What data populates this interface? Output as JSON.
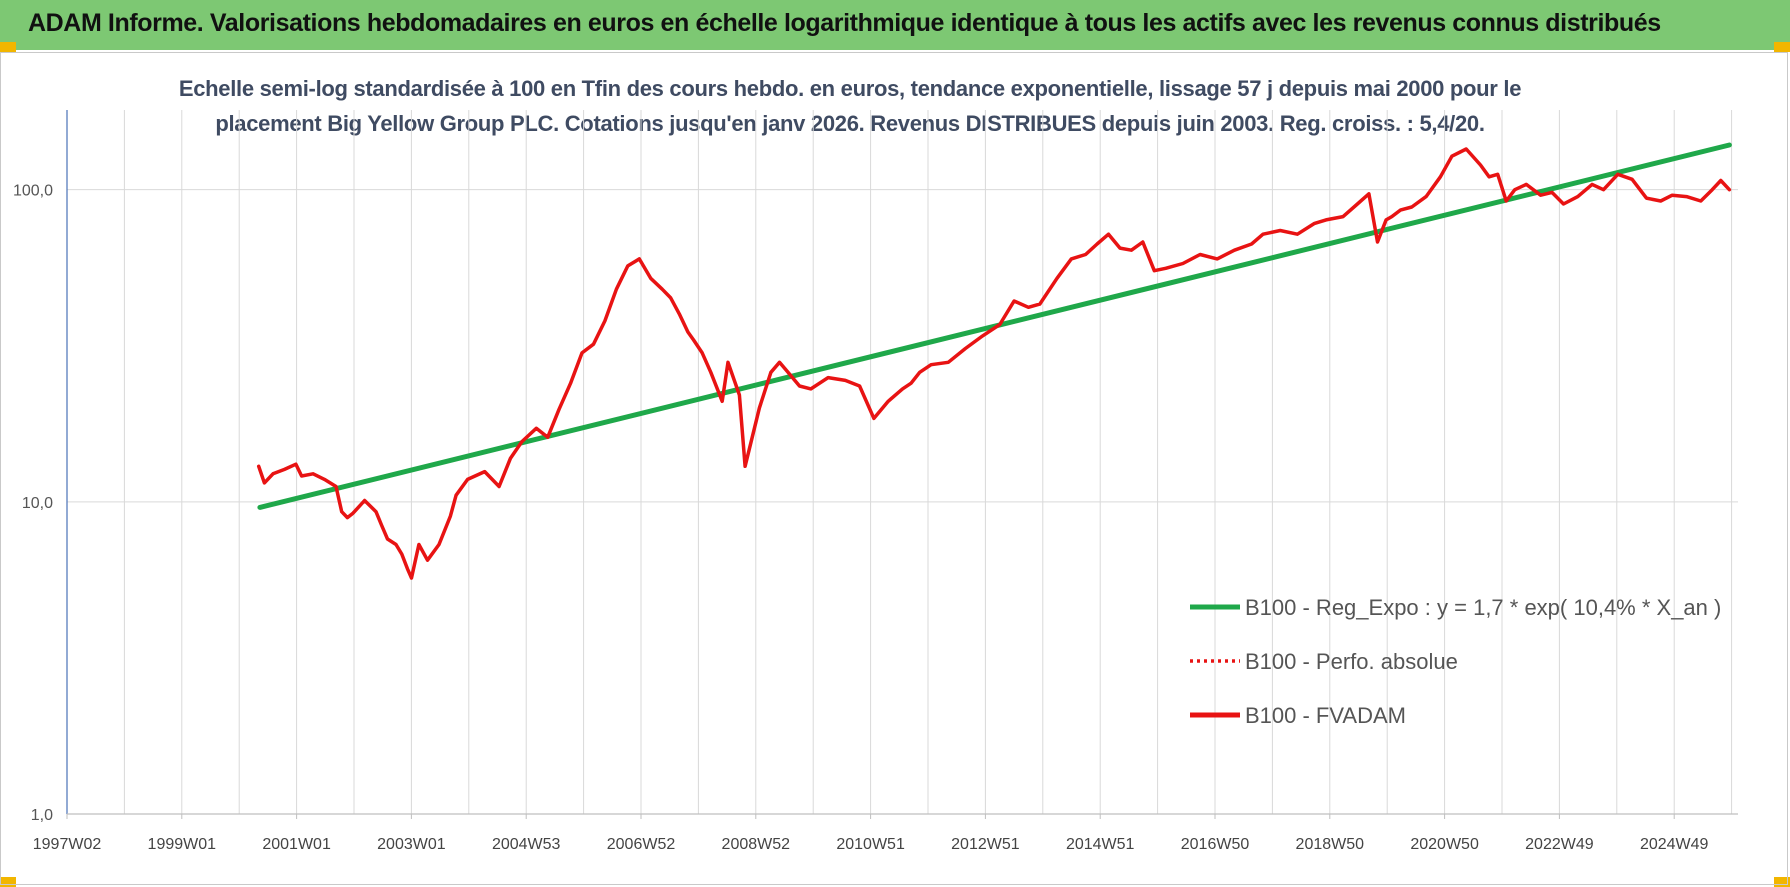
{
  "banner": {
    "title": "ADAM Informe. Valorisations hebdomadaires en euros en échelle logarithmique identique à tous les actifs avec les revenus connus distribués"
  },
  "colors": {
    "banner_bg": "#7dc873",
    "corner_accent": "#f2b600",
    "trend_line": "#1fa84a",
    "fvadam_line": "#e81313",
    "perfo_line": "#e81313",
    "subtitle_text": "#3f4b62"
  },
  "chart_data": {
    "type": "line",
    "title_line1": "Echelle semi-log standardisée à 100 en Tfin des cours hebdo. en euros, tendance exponentielle, lissage 57 j depuis mai 2000 pour le",
    "title_line2": "placement Big Yellow Group PLC. Cotations jusqu'en janv 2026. Revenus DISTRIBUES depuis juin 2003. Reg. croiss. : 5,4/20.",
    "y_scale": "log",
    "ylim": [
      1,
      180
    ],
    "y_ticks": [
      "1,0",
      "10,0",
      "100,0"
    ],
    "x_tick_labels": [
      "1997W02",
      "1999W01",
      "2001W01",
      "2003W01",
      "2004W53",
      "2006W52",
      "2008W52",
      "2010W51",
      "2012W51",
      "2014W51",
      "2016W50",
      "2018W50",
      "2020W50",
      "2022W49",
      "2024W49"
    ],
    "legend_position": "right",
    "grid": {
      "vertical": true,
      "horizontal": true
    },
    "series": [
      {
        "name": "B100 - Reg_Expo : y = 1,7 * exp( 10,4% *  X_an )",
        "style": "solid-green",
        "x": [
          2000.37,
          2026.05
        ],
        "y": [
          9.6,
          139
        ]
      },
      {
        "name": "B100 - Perfo. absolue",
        "style": "dotted-red",
        "x": [],
        "y": []
      },
      {
        "name": "B100 - FVADAM",
        "style": "solid-red",
        "x": [
          2000.35,
          2000.45,
          2000.6,
          2000.8,
          2001.0,
          2001.1,
          2001.3,
          2001.5,
          2001.7,
          2001.8,
          2001.9,
          2002.0,
          2002.2,
          2002.4,
          2002.5,
          2002.6,
          2002.75,
          2002.85,
          2002.95,
          2003.02,
          2003.15,
          2003.3,
          2003.5,
          2003.7,
          2003.8,
          2004.0,
          2004.3,
          2004.55,
          2004.75,
          2004.95,
          2005.2,
          2005.4,
          2005.6,
          2005.8,
          2006.0,
          2006.2,
          2006.4,
          2006.6,
          2006.8,
          2007.0,
          2007.2,
          2007.4,
          2007.55,
          2007.7,
          2007.85,
          2007.95,
          2008.1,
          2008.25,
          2008.45,
          2008.55,
          2008.75,
          2008.85,
          2009.1,
          2009.3,
          2009.45,
          2009.6,
          2009.8,
          2010.0,
          2010.3,
          2010.6,
          2010.85,
          2011.1,
          2011.35,
          2011.6,
          2011.75,
          2011.9,
          2012.1,
          2012.4,
          2012.7,
          2013.0,
          2013.3,
          2013.55,
          2013.8,
          2014.0,
          2014.3,
          2014.55,
          2014.8,
          2015.0,
          2015.2,
          2015.4,
          2015.6,
          2015.8,
          2016.0,
          2016.2,
          2016.5,
          2016.8,
          2017.1,
          2017.4,
          2017.7,
          2017.9,
          2018.2,
          2018.5,
          2018.8,
          2019.0,
          2019.3,
          2019.55,
          2019.75,
          2019.9,
          2020.05,
          2020.15,
          2020.3,
          2020.5,
          2020.75,
          2021.0,
          2021.2,
          2021.45,
          2021.7,
          2021.85,
          2022.0,
          2022.15,
          2022.3,
          2022.5,
          2022.75,
          2022.95,
          2023.15,
          2023.4,
          2023.65,
          2023.85,
          2024.1,
          2024.35,
          2024.6,
          2024.85,
          2025.05,
          2025.3,
          2025.55,
          2025.75,
          2025.9,
          2026.05
        ],
        "y": [
          13.0,
          11.5,
          12.3,
          12.7,
          13.2,
          12.1,
          12.3,
          11.8,
          11.2,
          9.3,
          8.9,
          9.2,
          10.1,
          9.3,
          8.4,
          7.6,
          7.3,
          6.8,
          6.1,
          5.7,
          7.3,
          6.5,
          7.3,
          9.0,
          10.5,
          11.8,
          12.5,
          11.2,
          13.8,
          15.6,
          17.2,
          16.1,
          19.8,
          24.0,
          30.0,
          32.0,
          38.0,
          48.0,
          57.0,
          60.0,
          52.0,
          48.0,
          45.0,
          40.0,
          35.0,
          33.0,
          30.0,
          26.0,
          21.0,
          28.0,
          22.0,
          13.0,
          20.0,
          26.0,
          28.0,
          26.0,
          23.5,
          23.0,
          25.0,
          24.5,
          23.5,
          18.5,
          21.0,
          23.0,
          24.0,
          26.0,
          27.5,
          28.0,
          31.0,
          34.0,
          37.0,
          44.0,
          42.0,
          43.0,
          52.0,
          60.0,
          62.0,
          67.0,
          72.0,
          65.0,
          64.0,
          68.0,
          55.0,
          56.0,
          58.0,
          62.0,
          60.0,
          64.0,
          67.0,
          72.0,
          74.0,
          72.0,
          78.0,
          80.0,
          82.0,
          90.0,
          97.0,
          68.0,
          80.0,
          82.0,
          86.0,
          88.0,
          95.0,
          110.0,
          128.0,
          135.0,
          120.0,
          110.0,
          112.0,
          92.0,
          100.0,
          104.0,
          96.0,
          98.0,
          90.0,
          95.0,
          104.0,
          100.0,
          112.0,
          108.0,
          94.0,
          92.0,
          96.0,
          95.0,
          92.0,
          100.0,
          107.0,
          100.0
        ]
      }
    ]
  }
}
